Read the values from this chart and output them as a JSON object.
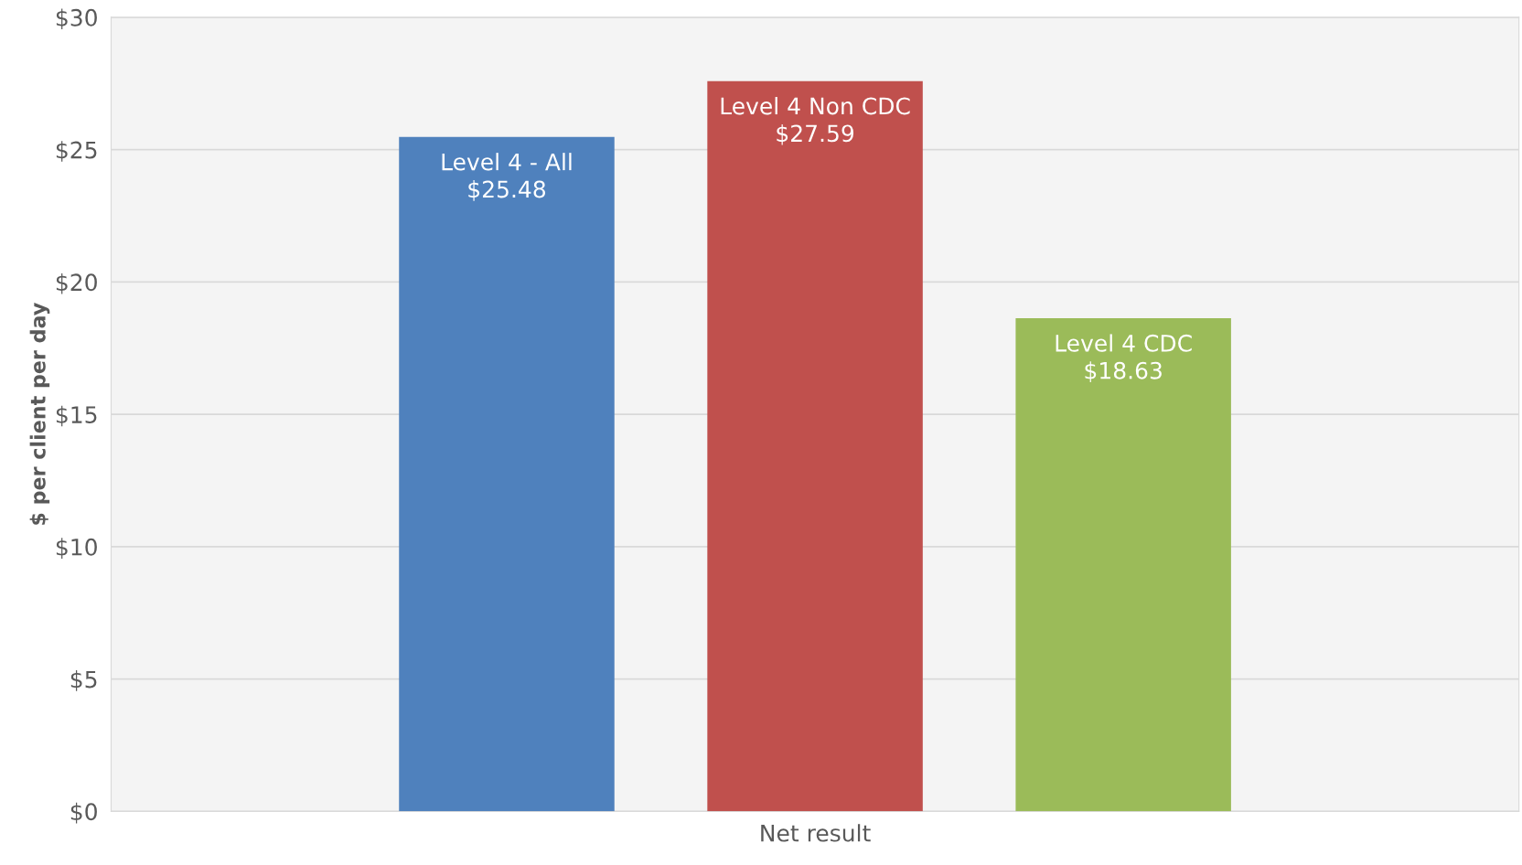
{
  "chart_data": {
    "type": "bar",
    "ylabel": "$ per client per day",
    "categories": [
      "Net result"
    ],
    "series": [
      {
        "name": "Level 4 - All",
        "color": "#4f81bd",
        "values": [
          25.48
        ],
        "value_labels": [
          "$25.48"
        ]
      },
      {
        "name": "Level 4 Non CDC",
        "color": "#c0504d",
        "values": [
          27.59
        ],
        "value_labels": [
          "$27.59"
        ]
      },
      {
        "name": "Level 4 CDC",
        "color": "#9bbb59",
        "values": [
          18.63
        ],
        "value_labels": [
          "$18.63"
        ]
      }
    ],
    "ylim": [
      0,
      30
    ],
    "yticks": [
      {
        "value": 0,
        "label": "$0"
      },
      {
        "value": 5,
        "label": "$5"
      },
      {
        "value": 10,
        "label": "$10"
      },
      {
        "value": 15,
        "label": "$15"
      },
      {
        "value": 20,
        "label": "$20"
      },
      {
        "value": 25,
        "label": "$25"
      },
      {
        "value": 30,
        "label": "$30"
      }
    ],
    "grid": "y",
    "legend": false
  }
}
